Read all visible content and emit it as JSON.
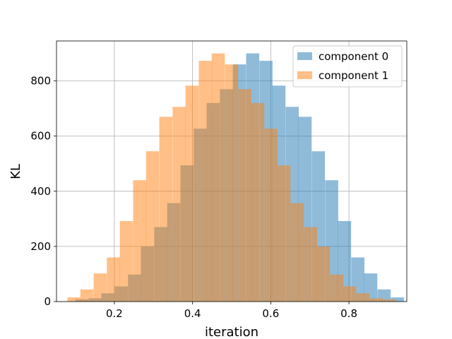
{
  "chart_data": {
    "type": "histogram",
    "xlabel": "iteration",
    "ylabel": "KL",
    "xlim": [
      0.052,
      0.948
    ],
    "ylim": [
      0,
      945
    ],
    "xticks": [
      0.2,
      0.4,
      0.6,
      0.8
    ],
    "xtick_labels": [
      "0.2",
      "0.4",
      "0.6",
      "0.8"
    ],
    "yticks": [
      0,
      200,
      400,
      600,
      800
    ],
    "ytick_labels": [
      "0",
      "200",
      "400",
      "600",
      "800"
    ],
    "grid": true,
    "legend_position": "top-right",
    "series": [
      {
        "name": "component 0",
        "color": "#1f77b4",
        "opacity": 0.5,
        "bin_width": 0.0336,
        "bins": [
          [
            0.1,
            8
          ],
          [
            0.134,
            12
          ],
          [
            0.167,
            30
          ],
          [
            0.201,
            55
          ],
          [
            0.235,
            98
          ],
          [
            0.268,
            200
          ],
          [
            0.302,
            270
          ],
          [
            0.335,
            357
          ],
          [
            0.369,
            494
          ],
          [
            0.403,
            627
          ],
          [
            0.436,
            720
          ],
          [
            0.47,
            770
          ],
          [
            0.503,
            860
          ],
          [
            0.537,
            900
          ],
          [
            0.571,
            873
          ],
          [
            0.604,
            783
          ],
          [
            0.638,
            706
          ],
          [
            0.671,
            670
          ],
          [
            0.705,
            545
          ],
          [
            0.739,
            440
          ],
          [
            0.772,
            292
          ],
          [
            0.806,
            160
          ],
          [
            0.839,
            102
          ],
          [
            0.873,
            44
          ],
          [
            0.907,
            15
          ]
        ]
      },
      {
        "name": "component 1",
        "color": "#ff7f0e",
        "opacity": 0.5,
        "bin_width": 0.0336,
        "bins": [
          [
            0.08,
            15
          ],
          [
            0.113,
            44
          ],
          [
            0.147,
            102
          ],
          [
            0.181,
            160
          ],
          [
            0.214,
            292
          ],
          [
            0.248,
            440
          ],
          [
            0.281,
            545
          ],
          [
            0.315,
            670
          ],
          [
            0.349,
            706
          ],
          [
            0.382,
            783
          ],
          [
            0.416,
            873
          ],
          [
            0.449,
            900
          ],
          [
            0.483,
            860
          ],
          [
            0.517,
            770
          ],
          [
            0.55,
            720
          ],
          [
            0.584,
            627
          ],
          [
            0.617,
            494
          ],
          [
            0.651,
            357
          ],
          [
            0.685,
            270
          ],
          [
            0.718,
            200
          ],
          [
            0.752,
            98
          ],
          [
            0.785,
            55
          ],
          [
            0.819,
            30
          ],
          [
            0.853,
            12
          ],
          [
            0.886,
            8
          ]
        ]
      }
    ]
  }
}
